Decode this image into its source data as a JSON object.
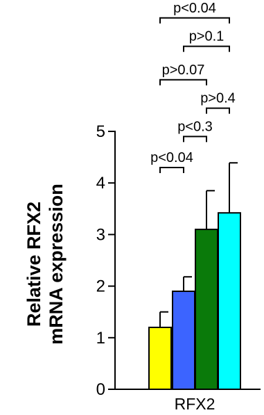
{
  "chart_data": {
    "type": "bar",
    "title": "",
    "ylabel_lines": [
      "Relative RFX2",
      "mRNA expression"
    ],
    "xlabel": "RFX2",
    "ylim": [
      0,
      5
    ],
    "yticks": [
      0,
      1,
      2,
      3,
      4,
      5
    ],
    "categories": [
      "RFX2"
    ],
    "series": [
      {
        "values": [
          1.2
        ],
        "error": [
          0.3
        ],
        "color": "#ffff00"
      },
      {
        "values": [
          1.9
        ],
        "error": [
          0.28
        ],
        "color": "#3c64ff"
      },
      {
        "values": [
          3.1
        ],
        "error": [
          0.75
        ],
        "color": "#0a7a0a"
      },
      {
        "values": [
          3.42
        ],
        "error": [
          0.97
        ],
        "color": "#00ffff"
      }
    ],
    "annotations": [
      {
        "text": "p<0.04",
        "from": 0,
        "to": 1,
        "level": 4.3
      },
      {
        "text": "p<0.3",
        "from": 1,
        "to": 2,
        "level": 4.9
      },
      {
        "text": "p>0.4",
        "from": 2,
        "to": 3,
        "level": 5.45
      },
      {
        "text": "p>0.07",
        "from": 0,
        "to": 2,
        "level": 6.0
      },
      {
        "text": "p>0.1",
        "from": 1,
        "to": 3,
        "level": 6.65
      },
      {
        "text": "p<0.04",
        "from": 0,
        "to": 3,
        "level": 7.2
      }
    ]
  }
}
